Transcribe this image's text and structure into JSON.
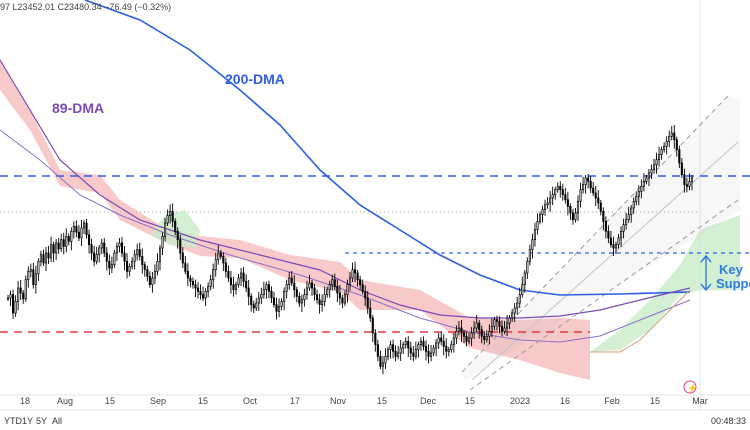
{
  "header": {
    "ohlc_text": "97  L23452.01  C23480.34  −76.49 (−0.32%)"
  },
  "toolbar": {
    "ranges": [
      "YTD",
      "1Y",
      "5Y",
      "All"
    ],
    "time": "00:48:33"
  },
  "colors": {
    "bg": "#ffffff",
    "up": "#000000",
    "down": "#000000",
    "dma200": "#2f5fe0",
    "dma89": "#7b4bb8",
    "dma_purple2": "#8a6fc9",
    "cloud_red": "#f6b7b7",
    "cloud_green": "#c8ecc8",
    "resistance": "#2f5fe0",
    "support": "#e23b3b",
    "channel": "#9a9a9a",
    "key_support": "#2f7be0"
  },
  "chart_data": {
    "type": "candlestick",
    "title": "",
    "x_ticks": [
      "18",
      "Aug",
      "15",
      "Sep",
      "15",
      "Oct",
      "17",
      "Nov",
      "15",
      "Dec",
      "15",
      "2023",
      "16",
      "Feb",
      "15",
      "Mar"
    ],
    "annotations": {
      "dma200_label": "200-DMA",
      "dma89_label": "89-DMA",
      "key_support_label": "Key Support"
    },
    "closes": [
      96,
      100,
      78,
      92,
      108,
      102,
      95,
      118,
      128,
      130,
      112,
      125,
      140,
      148,
      138,
      150,
      144,
      160,
      150,
      162,
      155,
      166,
      158,
      170,
      164,
      176,
      182,
      175,
      168,
      180,
      186,
      172,
      160,
      150,
      140,
      148,
      156,
      162,
      150,
      140,
      132,
      136,
      150,
      158,
      162,
      150,
      140,
      128,
      134,
      140,
      148,
      154,
      146,
      136,
      130,
      122,
      112,
      120,
      128,
      140,
      156,
      170,
      186,
      195,
      200,
      188,
      176,
      166,
      150,
      138,
      128,
      120,
      116,
      112,
      108,
      104,
      100,
      96,
      104,
      110,
      118,
      130,
      142,
      150,
      146,
      138,
      128,
      120,
      112,
      106,
      112,
      120,
      126,
      116,
      108,
      98,
      88,
      84,
      90,
      96,
      100,
      106,
      112,
      104,
      96,
      88,
      80,
      86,
      92,
      104,
      112,
      120,
      114,
      106,
      98,
      90,
      94,
      100,
      108,
      114,
      108,
      100,
      94,
      88,
      92,
      100,
      106,
      112,
      118,
      110,
      102,
      96,
      90,
      100,
      112,
      120,
      130,
      126,
      118,
      112,
      104,
      96,
      84,
      72,
      54,
      40,
      26,
      14,
      18,
      26,
      34,
      40,
      32,
      26,
      30,
      36,
      40,
      44,
      36,
      30,
      26,
      34,
      40,
      44,
      38,
      32,
      26,
      30,
      36,
      42,
      48,
      44,
      38,
      32,
      34,
      40,
      48,
      56,
      60,
      54,
      50,
      44,
      48,
      54,
      60,
      66,
      58,
      50,
      46,
      50,
      56,
      62,
      70,
      68,
      62,
      56,
      60,
      66,
      72,
      78,
      84,
      90,
      100,
      112,
      126,
      140,
      154,
      166,
      178,
      188,
      196,
      202,
      208,
      210,
      216,
      220,
      226,
      230,
      226,
      220,
      214,
      206,
      198,
      190,
      198,
      212,
      226,
      232,
      240,
      236,
      228,
      222,
      216,
      210,
      200,
      188,
      176,
      168,
      160,
      156,
      160,
      168,
      176,
      184,
      190,
      196,
      204,
      212,
      218,
      224,
      230,
      236,
      240,
      246,
      250,
      256,
      262,
      268,
      274,
      278,
      284,
      290,
      294,
      286,
      274,
      258,
      244,
      232,
      230,
      236,
      240
    ]
  }
}
